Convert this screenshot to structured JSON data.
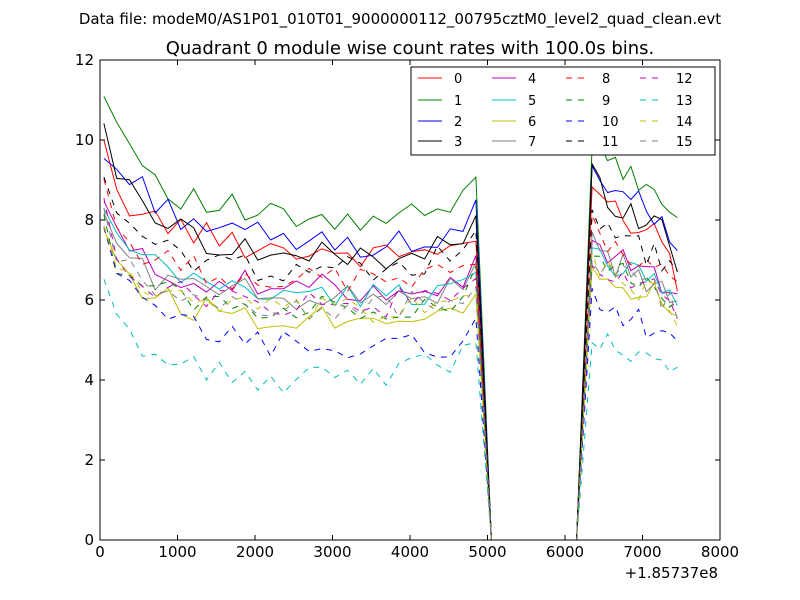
{
  "chart_data": {
    "type": "line",
    "suptitle": "Data file: modeM0/AS1P01_010T01_9000000112_00795cztM0_level2_quad_clean.evt",
    "title": "Quadrant 0 module wise count rates with 100.0s bins.",
    "xlabel": "",
    "ylabel": "",
    "x_offset_label": "+1.85737e8",
    "xlim": [
      0,
      8000
    ],
    "ylim": [
      0,
      12
    ],
    "x_ticks": [
      0,
      1000,
      2000,
      3000,
      4000,
      5000,
      6000,
      7000,
      8000
    ],
    "y_ticks": [
      0,
      2,
      4,
      6,
      8,
      10,
      12
    ],
    "grid": false,
    "legend_position": "top-right",
    "legend_columns": 4,
    "gap": [
      5050,
      6150
    ],
    "segment1_x_range": [
      50,
      4850
    ],
    "segment2_x_range": [
      6350,
      7450
    ],
    "series": [
      {
        "name": "0",
        "color": "#ff0000",
        "dash": "solid",
        "seg1": [
          9.7,
          8.6,
          8.4,
          8.2,
          8.0,
          7.9,
          7.8,
          7.7,
          7.6,
          7.5,
          7.5,
          7.4,
          7.4,
          7.3,
          7.3,
          7.3,
          7.2,
          7.2,
          7.2,
          7.2,
          7.1,
          7.1,
          7.1,
          7.2,
          7.2,
          7.2,
          7.3,
          7.3,
          7.4,
          7.5
        ],
        "seg2": [
          9.0,
          8.6,
          8.4,
          8.2,
          8.1,
          8.0,
          7.9,
          7.8,
          7.7,
          7.6,
          7.4,
          6.3
        ]
      },
      {
        "name": "1",
        "color": "#008000",
        "dash": "solid",
        "seg1": [
          11.4,
          10.4,
          10.0,
          9.5,
          9.1,
          8.8,
          8.6,
          8.5,
          8.4,
          8.3,
          8.3,
          8.2,
          8.1,
          8.1,
          8.0,
          8.0,
          8.0,
          7.9,
          7.9,
          7.9,
          7.9,
          7.9,
          8.0,
          8.0,
          8.1,
          8.1,
          8.2,
          8.3,
          8.5,
          9.0
        ],
        "seg2": [
          10.0,
          9.6,
          9.4,
          9.3,
          9.2,
          9.1,
          9.0,
          8.9,
          8.7,
          8.4,
          8.2,
          8.0
        ]
      },
      {
        "name": "2",
        "color": "#0000ff",
        "dash": "solid",
        "seg1": [
          9.5,
          9.3,
          9.0,
          8.8,
          8.5,
          8.3,
          8.1,
          8.0,
          7.9,
          7.8,
          7.7,
          7.6,
          7.6,
          7.5,
          7.5,
          7.5,
          7.4,
          7.4,
          7.4,
          7.4,
          7.4,
          7.4,
          7.4,
          7.4,
          7.5,
          7.5,
          7.5,
          7.6,
          7.7,
          8.2
        ],
        "seg2": [
          9.3,
          9.0,
          8.9,
          8.8,
          8.6,
          8.5,
          8.4,
          8.3,
          8.2,
          8.0,
          7.8,
          7.3
        ]
      },
      {
        "name": "3",
        "color": "#000000",
        "dash": "solid",
        "seg1": [
          10.5,
          9.2,
          8.7,
          8.4,
          8.2,
          8.0,
          7.8,
          7.6,
          7.5,
          7.4,
          7.3,
          7.3,
          7.2,
          7.2,
          7.1,
          7.1,
          7.1,
          7.1,
          7.1,
          7.1,
          7.1,
          7.1,
          7.1,
          7.2,
          7.2,
          7.2,
          7.3,
          7.3,
          7.4,
          7.9
        ],
        "seg2": [
          9.2,
          8.8,
          8.6,
          8.4,
          8.3,
          8.2,
          8.1,
          8.0,
          7.9,
          7.8,
          7.6,
          7.0
        ]
      },
      {
        "name": "4",
        "color": "#bf00bf",
        "dash": "solid",
        "seg1": [
          8.5,
          7.6,
          7.2,
          7.0,
          6.8,
          6.7,
          6.6,
          6.5,
          6.5,
          6.4,
          6.4,
          6.4,
          6.3,
          6.3,
          6.3,
          6.3,
          6.3,
          6.3,
          6.3,
          6.3,
          6.3,
          6.3,
          6.3,
          6.3,
          6.4,
          6.4,
          6.4,
          6.4,
          6.5,
          6.9
        ],
        "seg2": [
          7.6,
          7.3,
          7.2,
          7.1,
          7.0,
          6.9,
          6.8,
          6.7,
          6.6,
          6.5,
          6.4,
          6.1
        ]
      },
      {
        "name": "5",
        "color": "#00bfbf",
        "dash": "solid",
        "seg1": [
          8.2,
          7.5,
          7.2,
          7.0,
          6.8,
          6.7,
          6.6,
          6.5,
          6.4,
          6.4,
          6.3,
          6.3,
          6.2,
          6.2,
          6.2,
          6.1,
          6.1,
          6.1,
          6.1,
          6.1,
          6.1,
          6.1,
          6.1,
          6.1,
          6.2,
          6.2,
          6.2,
          6.3,
          6.4,
          6.8
        ],
        "seg2": [
          7.5,
          7.2,
          7.0,
          6.9,
          6.8,
          6.7,
          6.6,
          6.5,
          6.4,
          6.3,
          6.2,
          5.9
        ]
      },
      {
        "name": "6",
        "color": "#bfbf00",
        "dash": "solid",
        "seg1": [
          8.0,
          7.0,
          6.6,
          6.3,
          6.1,
          6.0,
          5.9,
          5.8,
          5.8,
          5.7,
          5.7,
          5.7,
          5.6,
          5.6,
          5.6,
          5.6,
          5.6,
          5.6,
          5.6,
          5.6,
          5.6,
          5.6,
          5.6,
          5.7,
          5.7,
          5.7,
          5.8,
          5.8,
          5.9,
          6.4
        ],
        "seg2": [
          7.0,
          6.7,
          6.6,
          6.5,
          6.4,
          6.3,
          6.2,
          6.1,
          6.1,
          6.0,
          5.9,
          5.4
        ]
      },
      {
        "name": "7",
        "color": "#808080",
        "dash": "solid",
        "seg1": [
          8.3,
          7.4,
          7.0,
          6.8,
          6.6,
          6.5,
          6.4,
          6.3,
          6.3,
          6.2,
          6.2,
          6.2,
          6.1,
          6.1,
          6.1,
          6.1,
          6.1,
          6.1,
          6.1,
          6.1,
          6.1,
          6.1,
          6.1,
          6.1,
          6.2,
          6.2,
          6.2,
          6.3,
          6.4,
          6.8
        ],
        "seg2": [
          7.4,
          7.1,
          7.0,
          6.9,
          6.8,
          6.7,
          6.6,
          6.5,
          6.4,
          6.3,
          6.2,
          5.8
        ]
      },
      {
        "name": "8",
        "color": "#ff0000",
        "dash": "dashed",
        "seg1": [
          9.0,
          7.8,
          7.4,
          7.2,
          7.0,
          6.9,
          6.8,
          6.8,
          6.7,
          6.7,
          6.6,
          6.6,
          6.6,
          6.6,
          6.5,
          6.5,
          6.5,
          6.5,
          6.5,
          6.5,
          6.5,
          6.5,
          6.5,
          6.6,
          6.6,
          6.6,
          6.7,
          6.7,
          6.8,
          7.2
        ],
        "seg2": [
          7.8,
          7.5,
          7.4,
          7.3,
          7.2,
          7.1,
          7.0,
          6.9,
          6.8,
          6.7,
          6.6,
          6.3
        ]
      },
      {
        "name": "9",
        "color": "#008000",
        "dash": "dashed",
        "seg1": [
          7.8,
          7.0,
          6.7,
          6.5,
          6.3,
          6.2,
          6.1,
          6.0,
          6.0,
          5.9,
          5.9,
          5.9,
          5.8,
          5.8,
          5.8,
          5.8,
          5.8,
          5.8,
          5.8,
          5.8,
          5.8,
          5.8,
          5.8,
          5.9,
          5.9,
          5.9,
          6.0,
          6.0,
          6.1,
          6.5
        ],
        "seg2": [
          7.1,
          6.9,
          6.8,
          6.7,
          6.6,
          6.5,
          6.4,
          6.3,
          6.2,
          6.1,
          6.0,
          5.7
        ]
      },
      {
        "name": "10",
        "color": "#0000ff",
        "dash": "dashed",
        "seg1": [
          7.6,
          6.6,
          6.2,
          5.9,
          5.7,
          5.5,
          5.4,
          5.3,
          5.2,
          5.1,
          5.1,
          5.0,
          5.0,
          4.9,
          4.9,
          4.9,
          4.9,
          4.8,
          4.8,
          4.8,
          4.8,
          4.8,
          4.8,
          4.8,
          4.8,
          4.9,
          4.9,
          4.9,
          5.0,
          5.4
        ],
        "seg2": [
          6.3,
          6.0,
          5.9,
          5.8,
          5.7,
          5.6,
          5.5,
          5.4,
          5.3,
          5.2,
          5.1,
          4.8
        ]
      },
      {
        "name": "11",
        "color": "#000000",
        "dash": "dashed",
        "seg1": [
          9.3,
          8.1,
          7.7,
          7.5,
          7.3,
          7.2,
          7.1,
          7.0,
          7.0,
          6.9,
          6.9,
          6.9,
          6.8,
          6.8,
          6.8,
          6.8,
          6.8,
          6.8,
          6.8,
          6.8,
          6.8,
          6.8,
          6.8,
          6.9,
          6.9,
          6.9,
          7.0,
          7.0,
          7.1,
          7.5
        ],
        "seg2": [
          8.1,
          7.8,
          7.7,
          7.6,
          7.5,
          7.4,
          7.3,
          7.2,
          7.1,
          7.0,
          6.9,
          6.6
        ]
      },
      {
        "name": "12",
        "color": "#bf00bf",
        "dash": "dashed",
        "seg1": [
          8.2,
          7.1,
          6.8,
          6.6,
          6.4,
          6.3,
          6.2,
          6.1,
          6.1,
          6.0,
          6.0,
          6.0,
          5.9,
          5.9,
          5.9,
          5.9,
          5.9,
          5.9,
          5.9,
          5.9,
          5.9,
          5.9,
          5.9,
          6.0,
          6.0,
          6.0,
          6.1,
          6.1,
          6.2,
          6.6
        ],
        "seg2": [
          7.2,
          6.9,
          6.8,
          6.7,
          6.6,
          6.5,
          6.4,
          6.3,
          6.2,
          6.1,
          6.0,
          5.8
        ]
      },
      {
        "name": "13",
        "color": "#00bfbf",
        "dash": "dashed",
        "seg1": [
          6.3,
          5.4,
          5.1,
          4.9,
          4.7,
          4.5,
          4.4,
          4.3,
          4.2,
          4.1,
          4.1,
          4.0,
          4.0,
          4.0,
          4.0,
          4.0,
          4.0,
          4.0,
          4.1,
          4.1,
          4.1,
          4.2,
          4.2,
          4.3,
          4.3,
          4.4,
          4.4,
          4.5,
          4.6,
          5.0
        ],
        "seg2": [
          5.2,
          5.0,
          4.9,
          4.8,
          4.7,
          4.6,
          4.5,
          4.5,
          4.4,
          4.3,
          4.2,
          4.1
        ]
      },
      {
        "name": "14",
        "color": "#bfbf00",
        "dash": "dashed",
        "seg1": [
          7.9,
          6.9,
          6.6,
          6.4,
          6.2,
          6.1,
          6.0,
          5.9,
          5.9,
          5.8,
          5.8,
          5.8,
          5.7,
          5.7,
          5.7,
          5.7,
          5.7,
          5.7,
          5.7,
          5.7,
          5.7,
          5.7,
          5.7,
          5.8,
          5.8,
          5.8,
          5.9,
          5.9,
          6.0,
          6.4
        ],
        "seg2": [
          7.0,
          6.8,
          6.7,
          6.6,
          6.5,
          6.4,
          6.3,
          6.2,
          6.1,
          6.0,
          5.9,
          5.6
        ]
      },
      {
        "name": "15",
        "color": "#808080",
        "dash": "dashed",
        "seg1": [
          8.0,
          7.0,
          6.7,
          6.5,
          6.3,
          6.2,
          6.1,
          6.0,
          6.0,
          5.9,
          5.9,
          5.9,
          5.8,
          5.8,
          5.8,
          5.8,
          5.8,
          5.8,
          5.8,
          5.8,
          5.8,
          5.8,
          5.8,
          5.9,
          5.9,
          5.9,
          6.0,
          6.0,
          6.1,
          6.5
        ],
        "seg2": [
          7.1,
          6.9,
          6.8,
          6.7,
          6.6,
          6.5,
          6.4,
          6.3,
          6.2,
          6.1,
          6.0,
          5.7
        ]
      }
    ]
  }
}
